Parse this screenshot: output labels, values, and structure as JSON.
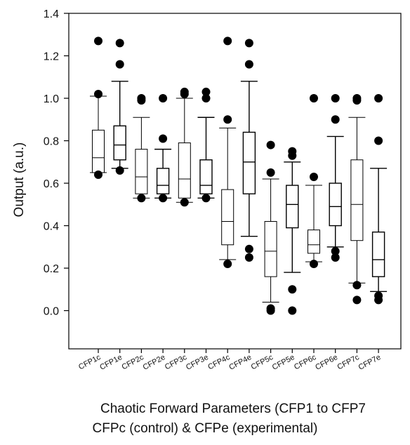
{
  "chart_data": {
    "type": "boxplot",
    "ylabel": "Output (a.u.)",
    "xlabel_line1": "Chaotic Forward Parameters (CFP1 to CFP7",
    "xlabel_line2": "CFPc (control) & CFPe (experimental)",
    "ylim": [
      -0.18,
      1.4
    ],
    "yticks": [
      "0.0",
      "0.2",
      "0.4",
      "0.6",
      "0.8",
      "1.0",
      "1.2",
      "1.4"
    ],
    "ytick_values": [
      0.0,
      0.2,
      0.4,
      0.6,
      0.8,
      1.0,
      1.2,
      1.4
    ],
    "grid": false,
    "categories": [
      "CFP1c",
      "CFP1e",
      "CFP2c",
      "CFP2e",
      "CFP3c",
      "CFP3e",
      "CFP4c",
      "CFP4e",
      "CFP5c",
      "CFP5e",
      "CFP6c",
      "CFP6e",
      "CFP7c",
      "CFP7e"
    ],
    "boxes": [
      {
        "q1": 0.65,
        "median": 0.72,
        "q3": 0.85,
        "whisker_low": 0.65,
        "whisker_high": 1.01,
        "outliers": [
          0.64,
          1.02,
          1.27
        ]
      },
      {
        "q1": 0.71,
        "median": 0.78,
        "q3": 0.87,
        "whisker_low": 0.67,
        "whisker_high": 1.08,
        "outliers": [
          0.66,
          1.16,
          1.26
        ]
      },
      {
        "q1": 0.55,
        "median": 0.63,
        "q3": 0.76,
        "whisker_low": 0.53,
        "whisker_high": 0.91,
        "outliers": [
          0.53,
          0.99,
          1.0
        ]
      },
      {
        "q1": 0.55,
        "median": 0.59,
        "q3": 0.67,
        "whisker_low": 0.53,
        "whisker_high": 0.76,
        "outliers": [
          0.53,
          0.81,
          1.0
        ]
      },
      {
        "q1": 0.53,
        "median": 0.62,
        "q3": 0.79,
        "whisker_low": 0.51,
        "whisker_high": 1.0,
        "outliers": [
          0.51,
          1.02,
          1.03
        ]
      },
      {
        "q1": 0.55,
        "median": 0.59,
        "q3": 0.71,
        "whisker_low": 0.53,
        "whisker_high": 0.91,
        "outliers": [
          0.53,
          1.0,
          1.03
        ]
      },
      {
        "q1": 0.31,
        "median": 0.42,
        "q3": 0.57,
        "whisker_low": 0.24,
        "whisker_high": 0.86,
        "outliers": [
          0.22,
          0.9,
          1.27
        ]
      },
      {
        "q1": 0.55,
        "median": 0.7,
        "q3": 0.84,
        "whisker_low": 0.35,
        "whisker_high": 1.08,
        "outliers": [
          0.25,
          0.29,
          1.16,
          1.26
        ]
      },
      {
        "q1": 0.16,
        "median": 0.28,
        "q3": 0.42,
        "whisker_low": 0.04,
        "whisker_high": 0.62,
        "outliers": [
          0.0,
          0.01,
          0.65,
          0.78
        ]
      },
      {
        "q1": 0.39,
        "median": 0.5,
        "q3": 0.59,
        "whisker_low": 0.18,
        "whisker_high": 0.7,
        "outliers": [
          0.0,
          0.1,
          0.73,
          0.75
        ]
      },
      {
        "q1": 0.27,
        "median": 0.31,
        "q3": 0.38,
        "whisker_low": 0.23,
        "whisker_high": 0.59,
        "outliers": [
          0.22,
          0.63,
          1.0
        ]
      },
      {
        "q1": 0.4,
        "median": 0.49,
        "q3": 0.6,
        "whisker_low": 0.3,
        "whisker_high": 0.82,
        "outliers": [
          0.25,
          0.28,
          0.9,
          1.0
        ]
      },
      {
        "q1": 0.33,
        "median": 0.5,
        "q3": 0.71,
        "whisker_low": 0.13,
        "whisker_high": 0.91,
        "outliers": [
          0.05,
          0.12,
          0.99,
          1.0
        ]
      },
      {
        "q1": 0.16,
        "median": 0.24,
        "q3": 0.37,
        "whisker_low": 0.09,
        "whisker_high": 0.67,
        "outliers": [
          0.05,
          0.07,
          0.8,
          1.0
        ]
      }
    ],
    "colors": {
      "box_fill": "#ffffff",
      "stroke": "#000000",
      "outlier": "#000000"
    }
  }
}
